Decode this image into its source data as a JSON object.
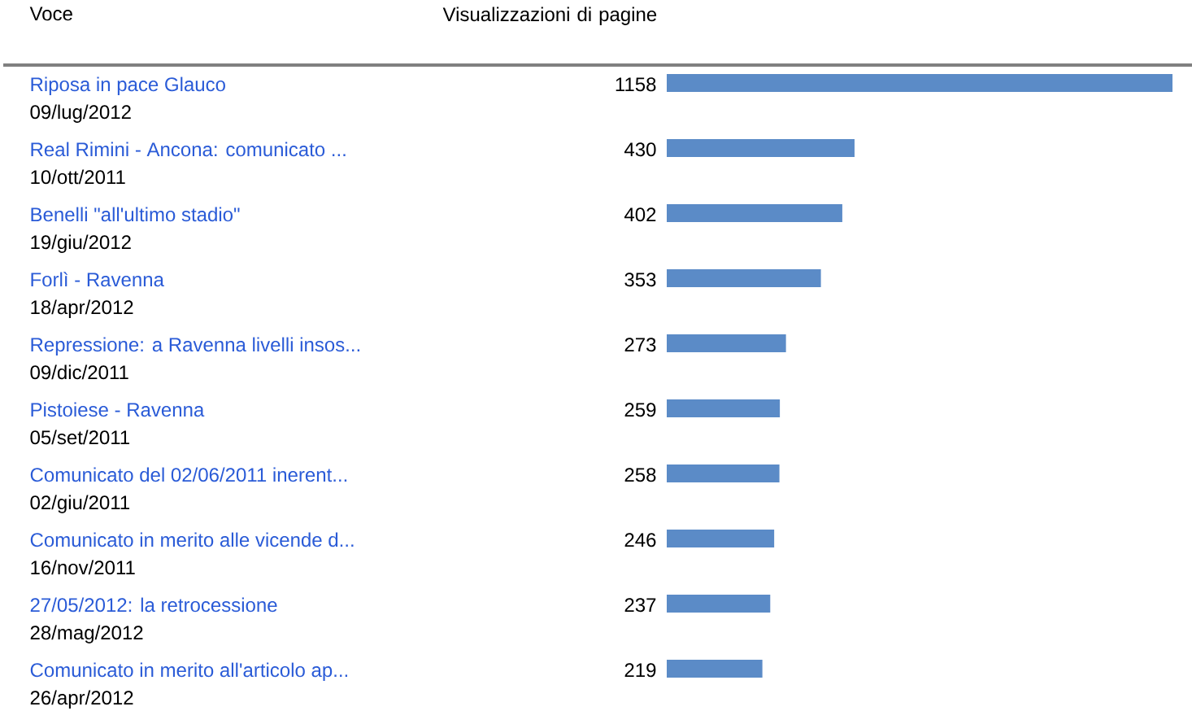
{
  "chart_data": {
    "type": "bar",
    "orientation": "horizontal",
    "ylabel": "Voce",
    "xlabel": "Visualizzazioni di pagine",
    "categories": [
      "Riposa in pace Glauco",
      "Real Rimini - Ancona: comunicato ...",
      "Benelli \"all'ultimo stadio\"",
      "Forlì - Ravenna",
      "Repressione: a Ravenna livelli insos...",
      "Pistoiese - Ravenna",
      "Comunicato del 02/06/2011 inerent...",
      "Comunicato in merito alle vicende d...",
      "27/05/2012: la retrocessione",
      "Comunicato in merito all'articolo ap..."
    ],
    "values": [
      1158,
      430,
      402,
      353,
      273,
      259,
      258,
      246,
      237,
      219
    ],
    "color": "#5b8bc7",
    "data_labels": true,
    "annotations": [
      "09/lug/2012",
      "10/ott/2011",
      "19/giu/2012",
      "18/apr/2012",
      "09/dic/2011",
      "05/set/2011",
      "02/giu/2011",
      "16/nov/2011",
      "28/mag/2012",
      "26/apr/2012"
    ]
  }
}
